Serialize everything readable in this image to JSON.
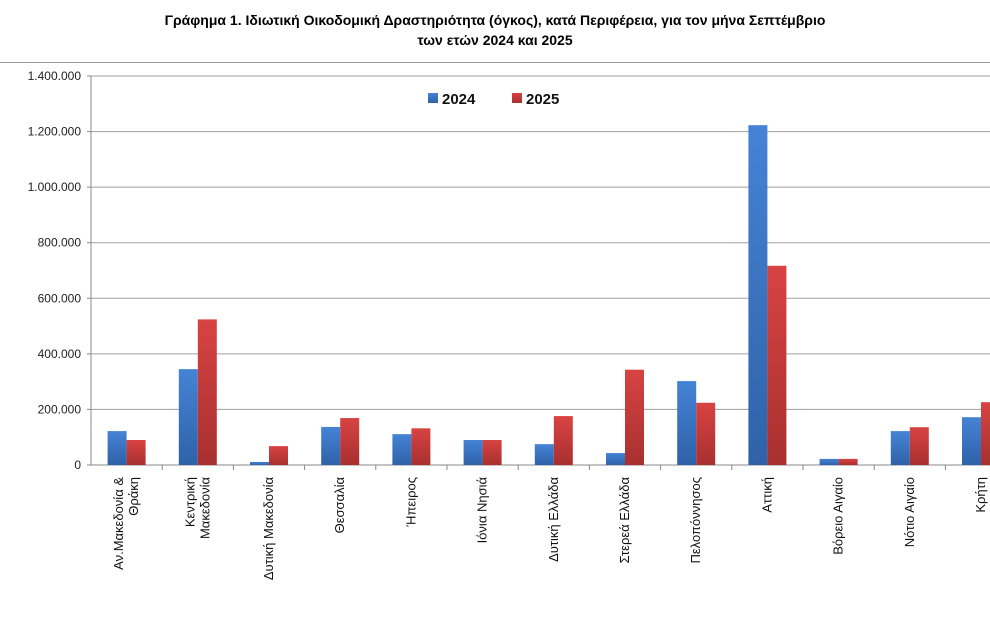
{
  "title_line1": "Γράφημα 1.  Ιδιωτική Οικοδομική Δραστηριότητα (όγκος), κατά Περιφέρεια, για τον μήνα Σεπτέμβριο",
  "title_line2": "των ετών 2024 και 2025",
  "chart_data": {
    "type": "bar",
    "title": "Γράφημα 1.  Ιδιωτική Οικοδομική Δραστηριότητα (όγκος), κατά Περιφέρεια, για τον μήνα Σεπτέμβριο των ετών 2024 και 2025",
    "categories": [
      [
        "Αν.Μακεδονία &",
        "Θράκη"
      ],
      [
        "Κεντρική",
        "Μακεδονία"
      ],
      [
        "Δυτική Μακεδονία"
      ],
      [
        "Θεσσαλία"
      ],
      [
        "Ήπειρος"
      ],
      [
        "Ιόνια Νησιά"
      ],
      [
        "Δυτική Ελλάδα"
      ],
      [
        "Στερεά Ελλάδα"
      ],
      [
        "Πελοπόννησος"
      ],
      [
        "Αττική"
      ],
      [
        "Βόρειο Αιγαίο"
      ],
      [
        "Νότιο Αιγαίο"
      ],
      [
        "Κρήτη"
      ]
    ],
    "series": [
      {
        "name": "2024",
        "color": "#3a70c0",
        "values": [
          122000,
          345000,
          11000,
          137000,
          111000,
          90000,
          75000,
          43000,
          302000,
          1223000,
          22000,
          122000,
          172000
        ]
      },
      {
        "name": "2025",
        "color": "#c23a3a",
        "values": [
          90000,
          524000,
          68000,
          169000,
          132000,
          90000,
          176000,
          343000,
          224000,
          717000,
          22000,
          136000,
          226000
        ]
      }
    ],
    "ylim": [
      0,
      1400000
    ],
    "yticks": [
      "0",
      "200.000",
      "400.000",
      "600.000",
      "800.000",
      "1.000.000",
      "1.200.000",
      "1.400.000"
    ],
    "grid": true,
    "legend": "top-center"
  }
}
